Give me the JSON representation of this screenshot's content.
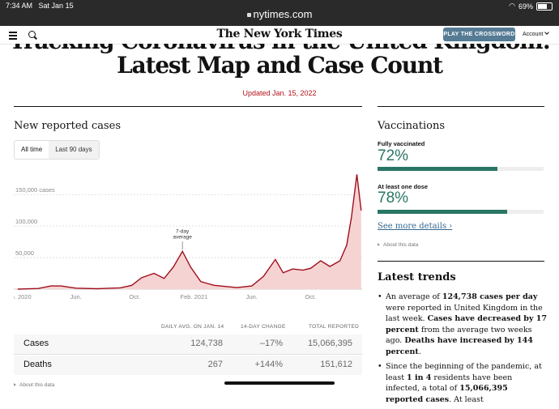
{
  "status": {
    "time": "7:34 AM",
    "date": "Sat Jan 15",
    "battery": "69%"
  },
  "browser": {
    "url": "nytimes.com"
  },
  "header": {
    "logo": "The New York Times",
    "crossword_button": "PLAY THE CROSSWORD",
    "account": "Account"
  },
  "article": {
    "headline_line1": "Tracking Coronavirus in the United Kingdom:",
    "headline_line2": "Latest Map and Case Count",
    "updated": "Updated Jan. 15, 2022"
  },
  "cases_section": {
    "title": "New reported cases",
    "tabs": [
      "All time",
      "Last 90 days"
    ],
    "active_tab": "All time"
  },
  "chart_data": {
    "type": "area",
    "title": "New reported cases",
    "x_tick_labels": [
      "Feb. 2020",
      "Jun.",
      "Oct.",
      "Feb. 2021",
      "Jun.",
      "Oct."
    ],
    "y_tick_labels": [
      "150,000 cases",
      "100,000",
      "50,000"
    ],
    "y_ticks": [
      150000,
      100000,
      50000
    ],
    "ylim": [
      0,
      185000
    ],
    "annotation": {
      "text_line1": "7-day",
      "text_line2": "average"
    },
    "series": [
      {
        "name": "7-day average",
        "points": [
          [
            "2020-02-01",
            0
          ],
          [
            "2020-03-15",
            1000
          ],
          [
            "2020-04-10",
            5000
          ],
          [
            "2020-05-01",
            5000
          ],
          [
            "2020-06-01",
            1500
          ],
          [
            "2020-07-15",
            700
          ],
          [
            "2020-09-01",
            2000
          ],
          [
            "2020-09-25",
            6000
          ],
          [
            "2020-10-15",
            18000
          ],
          [
            "2020-11-10",
            25000
          ],
          [
            "2020-12-01",
            17000
          ],
          [
            "2020-12-20",
            35000
          ],
          [
            "2021-01-08",
            60000
          ],
          [
            "2021-01-25",
            35000
          ],
          [
            "2021-02-15",
            12000
          ],
          [
            "2021-03-15",
            6000
          ],
          [
            "2021-05-01",
            2500
          ],
          [
            "2021-06-01",
            5000
          ],
          [
            "2021-06-25",
            20000
          ],
          [
            "2021-07-20",
            47000
          ],
          [
            "2021-08-05",
            26000
          ],
          [
            "2021-08-25",
            32000
          ],
          [
            "2021-09-15",
            30000
          ],
          [
            "2021-10-01",
            33000
          ],
          [
            "2021-10-22",
            45000
          ],
          [
            "2021-11-10",
            36000
          ],
          [
            "2021-12-01",
            45000
          ],
          [
            "2021-12-15",
            70000
          ],
          [
            "2021-12-25",
            115000
          ],
          [
            "2022-01-05",
            182000
          ],
          [
            "2022-01-14",
            124738
          ]
        ]
      }
    ]
  },
  "table": {
    "headers": [
      "DAILY AVG. ON JAN. 14",
      "14-DAY CHANGE",
      "TOTAL REPORTED"
    ],
    "rows": [
      {
        "label": "Cases",
        "daily": "124,738",
        "change": "–17%",
        "total": "15,066,395"
      },
      {
        "label": "Deaths",
        "daily": "267",
        "change": "+144%",
        "total": "151,612"
      }
    ],
    "about": "About this data"
  },
  "vaccinations": {
    "title": "Vaccinations",
    "fully_label": "Fully vaccinated",
    "fully_pct": "72%",
    "fully_value": 0.72,
    "one_dose_label": "At least one dose",
    "one_dose_pct": "78%",
    "one_dose_value": 0.78,
    "see_more": "See more details ›",
    "about": "About this data",
    "color": "#2a7664"
  },
  "trends": {
    "title": "Latest trends",
    "bullet1_parts": [
      "An average of ",
      "124,738 cases per day",
      " were reported in United Kingdom in the last week. ",
      "Cases have decreased by 17 percent",
      " from the average two weeks ago. ",
      "Deaths have increased by 144 percent",
      "."
    ],
    "bullet2_parts": [
      "Since the beginning of the pandemic, at least ",
      "1 in 4",
      " residents have been infected, a total of ",
      "15,066,395 reported cases",
      ". At least"
    ]
  },
  "colors": {
    "accent_red": "#b3121b",
    "chart_line": "#a10e1c",
    "chart_fill": "#f6d3d3",
    "button_blue": "#567b95"
  }
}
